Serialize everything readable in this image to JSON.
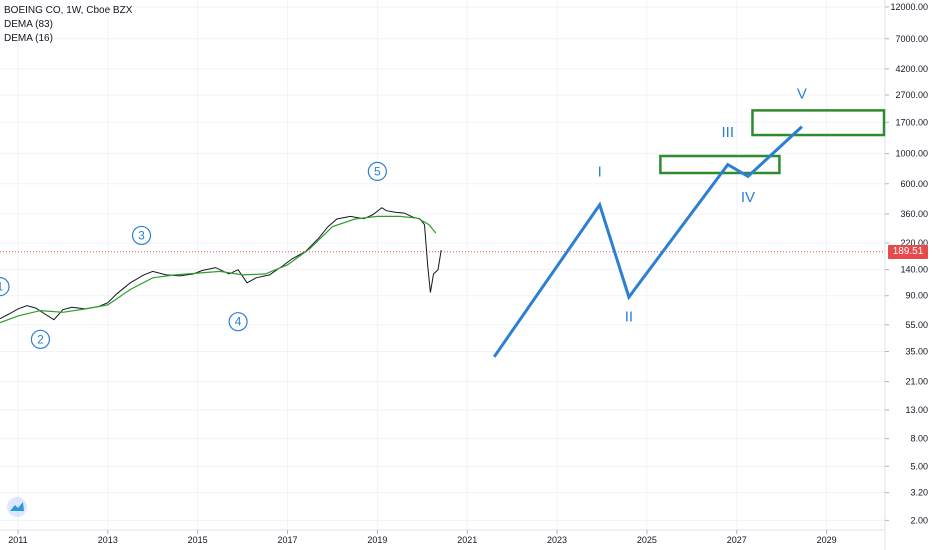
{
  "header": {
    "symbol_line": "BOEING CO, 1W, Cboe BZX",
    "indicator_1": "DEMA (83)",
    "indicator_2": "DEMA (16)"
  },
  "price_tag": "189.51",
  "colors": {
    "wave": "#2d7fd3",
    "box": "#2e8b2e",
    "dema_long": "#2e9e2e",
    "price": "#131722",
    "price_line": "#e64a4a",
    "grid": "#f0f3fa"
  },
  "chart_data": {
    "type": "line",
    "y_scale": "log",
    "ylim": [
      1.7,
      13500
    ],
    "xlim": [
      2010.6,
      2030.3
    ],
    "x_ticks": [
      "2011",
      "2013",
      "2015",
      "2017",
      "2019",
      "2021",
      "2023",
      "2025",
      "2027",
      "2029"
    ],
    "y_ticks": [
      "12000.00",
      "7000.00",
      "4200.00",
      "2700.00",
      "1700.00",
      "1000.00",
      "600.00",
      "360.00",
      "220.00",
      "140.00",
      "90.00",
      "55.00",
      "35.00",
      "21.00",
      "13.00",
      "8.00",
      "5.00",
      "3.20",
      "2.00"
    ],
    "current_price": 189.51,
    "price_series": {
      "x": [
        2010.6,
        2010.8,
        2011.0,
        2011.2,
        2011.4,
        2011.6,
        2011.8,
        2012.0,
        2012.2,
        2012.5,
        2012.8,
        2013.0,
        2013.2,
        2013.5,
        2013.8,
        2014.0,
        2014.3,
        2014.6,
        2014.9,
        2015.1,
        2015.4,
        2015.7,
        2015.9,
        2016.1,
        2016.3,
        2016.6,
        2016.9,
        2017.1,
        2017.4,
        2017.7,
        2017.9,
        2018.1,
        2018.4,
        2018.7,
        2018.9,
        2019.1,
        2019.2,
        2019.4,
        2019.6,
        2019.8,
        2019.95,
        2020.05,
        2020.12,
        2020.18,
        2020.25,
        2020.35,
        2020.42
      ],
      "y": [
        61,
        66,
        72,
        76,
        73,
        66,
        60,
        71,
        74,
        72,
        75,
        80,
        93,
        112,
        128,
        136,
        128,
        126,
        130,
        138,
        145,
        130,
        140,
        112,
        122,
        128,
        150,
        168,
        190,
        240,
        290,
        330,
        345,
        332,
        355,
        400,
        380,
        370,
        365,
        340,
        330,
        300,
        150,
        95,
        130,
        140,
        195
      ]
    },
    "dema_83": {
      "x": [
        2010.6,
        2011.0,
        2011.5,
        2012.0,
        2012.5,
        2013.0,
        2013.5,
        2014.0,
        2014.5,
        2015.0,
        2015.5,
        2016.0,
        2016.5,
        2017.0,
        2017.5,
        2018.0,
        2018.5,
        2019.0,
        2019.5,
        2019.9,
        2020.15,
        2020.3
      ],
      "y": [
        57,
        64,
        70,
        68,
        72,
        77,
        100,
        122,
        128,
        132,
        136,
        128,
        130,
        152,
        200,
        290,
        330,
        345,
        345,
        335,
        300,
        260
      ]
    },
    "wave_path": {
      "x": [
        2021.6,
        2023.95,
        2024.6,
        2026.8,
        2027.25,
        2028.45
      ],
      "y": [
        32,
        420,
        88,
        830,
        680,
        1580
      ]
    },
    "wave_labels": [
      {
        "text": "I",
        "x": 2023.95,
        "y": 680
      },
      {
        "text": "II",
        "x": 2024.6,
        "y": 58
      },
      {
        "text": "III",
        "x": 2026.8,
        "y": 1330
      },
      {
        "text": "IV",
        "x": 2027.25,
        "y": 440
      },
      {
        "text": "V",
        "x": 2028.45,
        "y": 2550
      }
    ],
    "circled_labels": [
      {
        "text": "1",
        "x": 2010.6,
        "y": 105
      },
      {
        "text": "2",
        "x": 2011.5,
        "y": 43
      },
      {
        "text": "3",
        "x": 2013.75,
        "y": 250
      },
      {
        "text": "4",
        "x": 2015.9,
        "y": 58
      },
      {
        "text": "5",
        "x": 2019.0,
        "y": 740
      }
    ],
    "target_boxes": [
      {
        "x0": 2025.3,
        "x1": 2027.95,
        "y0": 720,
        "y1": 960
      },
      {
        "x0": 2027.35,
        "x1": 2032.4,
        "y0": 1370,
        "y1": 2080
      }
    ]
  }
}
